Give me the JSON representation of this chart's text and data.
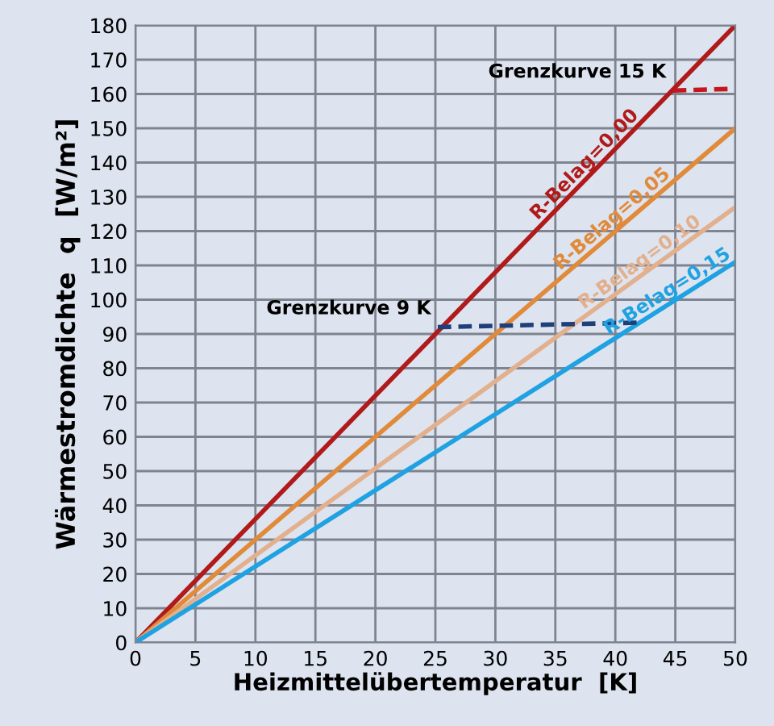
{
  "chart_data": {
    "type": "line",
    "xlabel": "Heizmittelübertemperatur  [K]",
    "ylabel": "Wärmestromdichte  q  [W/m²]",
    "xlim": [
      0,
      50
    ],
    "ylim": [
      0,
      180
    ],
    "xticks": [
      0,
      5,
      10,
      15,
      20,
      25,
      30,
      35,
      40,
      45,
      50
    ],
    "yticks": [
      0,
      10,
      20,
      30,
      40,
      50,
      60,
      70,
      80,
      90,
      100,
      110,
      120,
      130,
      140,
      150,
      160,
      170,
      180
    ],
    "grid": true,
    "marker": "none",
    "series": [
      {
        "name": "R-Belag=0,00",
        "color": "#b01a1a",
        "x": [
          0,
          50
        ],
        "values": [
          0,
          180
        ],
        "line_style": "solid"
      },
      {
        "name": "R-Belag=0,05",
        "color": "#e08a3a",
        "x": [
          0,
          50
        ],
        "values": [
          0,
          150
        ],
        "line_style": "solid"
      },
      {
        "name": "R-Belag=0,10",
        "color": "#e2b08c",
        "x": [
          0,
          50
        ],
        "values": [
          0,
          127
        ],
        "line_style": "solid"
      },
      {
        "name": "R-Belag=0,15",
        "color": "#1ea2e2",
        "x": [
          0,
          50
        ],
        "values": [
          0,
          111
        ],
        "line_style": "solid"
      },
      {
        "name": "Grenzkurve 15 K",
        "color": "#c4161c",
        "x": [
          44.8,
          50
        ],
        "values": [
          161,
          161.5
        ],
        "line_style": "dashed"
      },
      {
        "name": "Grenzkurve 9 K",
        "color": "#1f3f7a",
        "x": [
          25.2,
          41.8
        ],
        "values": [
          92,
          93.3
        ],
        "line_style": "dashed"
      }
    ]
  }
}
